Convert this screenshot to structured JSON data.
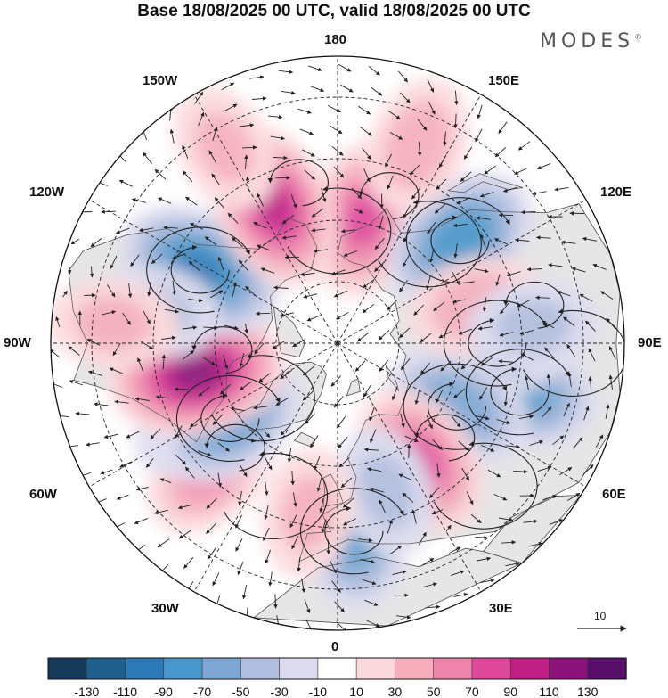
{
  "title": "Base 18/08/2025 00 UTC, valid 18/08/2025 00 UTC",
  "brand": "MODES",
  "brand_mark": "®",
  "longitude_labels": {
    "n180": "180",
    "nw150": "150W",
    "ne150": "150E",
    "w120": "120W",
    "e120": "120E",
    "w90": "90W",
    "e90": "90E",
    "w60": "60W",
    "e60": "60E",
    "w30": "30W",
    "e30": "30E",
    "s0": "0"
  },
  "vector_reference": {
    "value": "10"
  },
  "colorbar": {
    "tick_labels": [
      "-130",
      "-110",
      "-90",
      "-70",
      "-50",
      "-30",
      "-10",
      "10",
      "30",
      "50",
      "70",
      "90",
      "110",
      "130"
    ],
    "colors": [
      "#163a5a",
      "#1f5f8e",
      "#2c7ab8",
      "#4a97cb",
      "#7ea7d4",
      "#b0bedf",
      "#dcdbef",
      "#ffffff",
      "#fbd9dc",
      "#f6aebd",
      "#ef85ab",
      "#e0499b",
      "#c01f85",
      "#8c137a",
      "#580e6b"
    ]
  },
  "anomaly_centers": [
    {
      "lon": 95,
      "lat": 48,
      "value": 60
    },
    {
      "lon": 75,
      "lat": 44,
      "value": -70
    },
    {
      "lon": 90,
      "lat": 51,
      "value": -60
    },
    {
      "lon": 62,
      "lat": 57,
      "value": -60
    },
    {
      "lon": 35,
      "lat": 55,
      "value": 70
    },
    {
      "lon": 168,
      "lat": 59,
      "value": 70
    },
    {
      "lon": 130,
      "lat": 51,
      "value": -80
    },
    {
      "lon": 105,
      "lat": 55,
      "value": 40
    },
    {
      "lon": 158,
      "lat": 38,
      "value": 40
    },
    {
      "lon": 95,
      "lat": 42,
      "value": -30
    },
    {
      "lon": 5,
      "lat": 44,
      "value": -70
    },
    {
      "lon": 18,
      "lat": 52,
      "value": -30
    },
    {
      "lon": -45,
      "lat": 46,
      "value": 50
    },
    {
      "lon": -60,
      "lat": 50,
      "value": -30
    },
    {
      "lon": -55,
      "lat": 58,
      "value": -70
    },
    {
      "lon": -78,
      "lat": 55,
      "value": 110
    },
    {
      "lon": -118,
      "lat": 52,
      "value": -90
    },
    {
      "lon": -100,
      "lat": 45,
      "value": -30
    },
    {
      "lon": -155,
      "lat": 53,
      "value": 90
    },
    {
      "lon": -150,
      "lat": 35,
      "value": 30
    },
    {
      "lon": -95,
      "lat": 35,
      "value": 30
    },
    {
      "lon": -10,
      "lat": 48,
      "value": 30
    }
  ]
}
